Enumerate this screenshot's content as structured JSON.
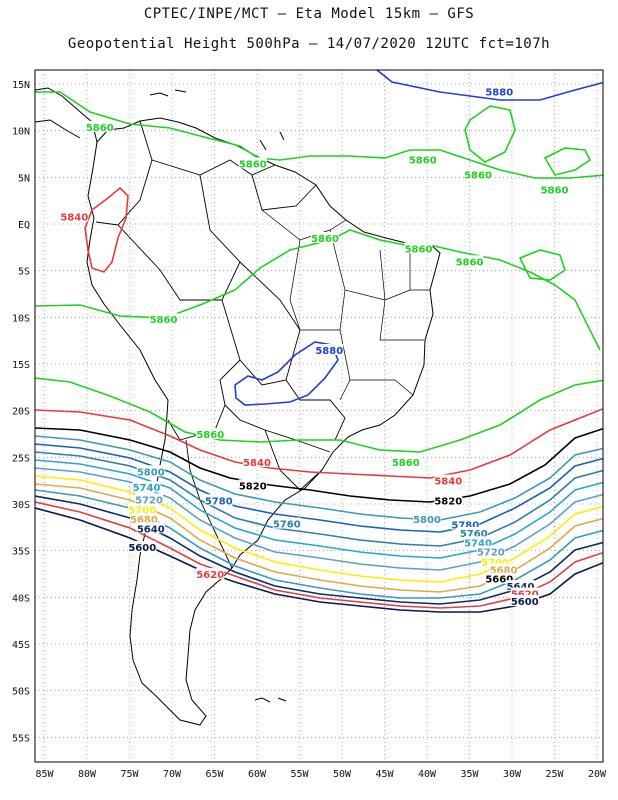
{
  "header": {
    "line1": "CPTEC/INPE/MCT –  Eta Model 15km – GFS",
    "line2": "Geopotential Height 500hPa – 14/07/2020 12UTC fct=107h"
  },
  "axes": {
    "lon_labels": [
      "85W",
      "80W",
      "75W",
      "70W",
      "65W",
      "60W",
      "55W",
      "50W",
      "45W",
      "40W",
      "35W",
      "30W",
      "25W",
      "20W"
    ],
    "lat_labels": [
      "15N",
      "10N",
      "5N",
      "EQ",
      "5S",
      "10S",
      "15S",
      "20S",
      "25S",
      "30S",
      "35S",
      "40S",
      "45S",
      "50S",
      "55S"
    ]
  },
  "colors": {
    "5880": "#1e3fd0",
    "5860": "#1ed21e",
    "5840": "#e83a3a",
    "5820": "#000000",
    "5800": "#3a9ab8",
    "5780": "#1a5fc0",
    "5760": "#2e7fa8",
    "5740": "#2aa4d8",
    "5720": "#5aa0c8",
    "5700": "#ffee00",
    "5680": "#e0a848",
    "5640": "#0a2a6a",
    "5620": "#e04040",
    "5600": "#0a1850"
  },
  "chart_data": {
    "type": "contour",
    "variable": "Geopotential Height 500hPa",
    "x_range": [
      -86,
      -20
    ],
    "y_range": [
      -59,
      16
    ],
    "contour_labels": [
      {
        "value": "5880",
        "lon": -31.5,
        "lat": 14.2
      },
      {
        "value": "5860",
        "lon": -78.5,
        "lat": 10.4
      },
      {
        "value": "5860",
        "lon": -60.5,
        "lat": 6.5
      },
      {
        "value": "5860",
        "lon": -40.5,
        "lat": 6.9
      },
      {
        "value": "5860",
        "lon": -34.0,
        "lat": 5.3
      },
      {
        "value": "5860",
        "lon": -25.0,
        "lat": 3.7
      },
      {
        "value": "5840",
        "lon": -81.5,
        "lat": 0.8
      },
      {
        "value": "5860",
        "lon": -52.0,
        "lat": -1.5
      },
      {
        "value": "5860",
        "lon": -41.0,
        "lat": -2.6
      },
      {
        "value": "5860",
        "lon": -35.0,
        "lat": -4.0
      },
      {
        "value": "5860",
        "lon": -71.0,
        "lat": -10.2
      },
      {
        "value": "5880",
        "lon": -51.5,
        "lat": -13.5
      },
      {
        "value": "5860",
        "lon": -65.5,
        "lat": -22.5
      },
      {
        "value": "5840",
        "lon": -60.0,
        "lat": -25.5
      },
      {
        "value": "5860",
        "lon": -42.5,
        "lat": -25.5
      },
      {
        "value": "5840",
        "lon": -37.5,
        "lat": -27.5
      },
      {
        "value": "5800",
        "lon": -72.5,
        "lat": -26.5
      },
      {
        "value": "5820",
        "lon": -60.5,
        "lat": -28.0
      },
      {
        "value": "5740",
        "lon": -73.0,
        "lat": -28.2
      },
      {
        "value": "5720",
        "lon": -72.7,
        "lat": -29.5
      },
      {
        "value": "5780",
        "lon": -64.5,
        "lat": -29.6
      },
      {
        "value": "5820",
        "lon": -37.5,
        "lat": -29.6
      },
      {
        "value": "5700",
        "lon": -73.5,
        "lat": -30.6
      },
      {
        "value": "5680",
        "lon": -73.3,
        "lat": -31.6
      },
      {
        "value": "5800",
        "lon": -40.0,
        "lat": -31.6
      },
      {
        "value": "5760",
        "lon": -56.5,
        "lat": -32.1
      },
      {
        "value": "5640",
        "lon": -72.5,
        "lat": -32.6
      },
      {
        "value": "5780",
        "lon": -35.5,
        "lat": -32.2
      },
      {
        "value": "5760",
        "lon": -34.5,
        "lat": -33.1
      },
      {
        "value": "5740",
        "lon": -34.0,
        "lat": -34.1
      },
      {
        "value": "5600",
        "lon": -73.5,
        "lat": -34.6
      },
      {
        "value": "5720",
        "lon": -32.5,
        "lat": -35.1
      },
      {
        "value": "5700",
        "lon": -32.0,
        "lat": -36.2
      },
      {
        "value": "5680",
        "lon": -31.0,
        "lat": -37.0
      },
      {
        "value": "5660",
        "lon": -31.5,
        "lat": -38.0
      },
      {
        "value": "5620",
        "lon": -65.5,
        "lat": -37.5
      },
      {
        "value": "5640",
        "lon": -29.0,
        "lat": -38.8
      },
      {
        "value": "5620",
        "lon": -28.5,
        "lat": -39.6
      },
      {
        "value": "5600",
        "lon": -28.5,
        "lat": -40.4
      }
    ],
    "grid": true
  }
}
